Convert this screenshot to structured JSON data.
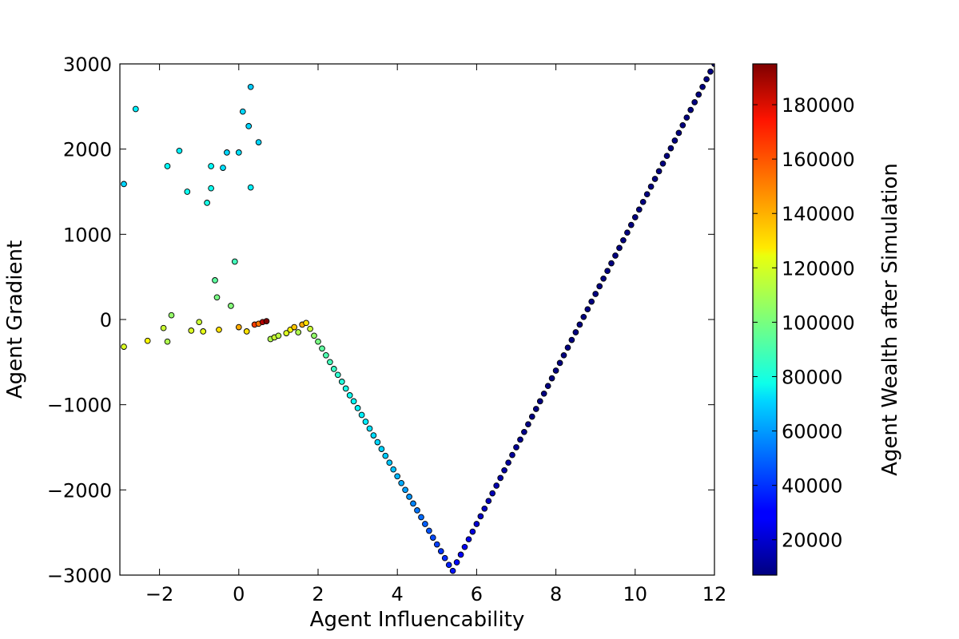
{
  "chart_data": {
    "type": "scatter",
    "title": "",
    "xlabel": "Agent Influencability",
    "ylabel": "Agent Gradient",
    "colorbar_label": "Agent Wealth after Simulation",
    "xlim": [
      -3,
      12
    ],
    "ylim": [
      -3000,
      3000
    ],
    "color_range": [
      7000,
      195000
    ],
    "colormap": "jet",
    "marker_edge_color": "#000000",
    "grid": false,
    "x_ticks": [
      {
        "value": -2,
        "label": "−2"
      },
      {
        "value": 0,
        "label": "0"
      },
      {
        "value": 2,
        "label": "2"
      },
      {
        "value": 4,
        "label": "4"
      },
      {
        "value": 6,
        "label": "6"
      },
      {
        "value": 8,
        "label": "8"
      },
      {
        "value": 10,
        "label": "10"
      },
      {
        "value": 12,
        "label": "12"
      }
    ],
    "y_ticks": [
      {
        "value": -3000,
        "label": "−3000"
      },
      {
        "value": -2000,
        "label": "−2000"
      },
      {
        "value": -1000,
        "label": "−1000"
      },
      {
        "value": 0,
        "label": "0"
      },
      {
        "value": 1000,
        "label": "1000"
      },
      {
        "value": 2000,
        "label": "2000"
      },
      {
        "value": 3000,
        "label": "3000"
      }
    ],
    "colorbar_ticks": [
      {
        "value": 20000,
        "label": "20000"
      },
      {
        "value": 40000,
        "label": "40000"
      },
      {
        "value": 60000,
        "label": "60000"
      },
      {
        "value": 80000,
        "label": "80000"
      },
      {
        "value": 100000,
        "label": "100000"
      },
      {
        "value": 120000,
        "label": "120000"
      },
      {
        "value": 140000,
        "label": "140000"
      },
      {
        "value": 160000,
        "label": "160000"
      },
      {
        "value": 180000,
        "label": "180000"
      }
    ],
    "points": [
      [
        -2.9,
        -320,
        118000
      ],
      [
        -2.9,
        1590,
        70000
      ],
      [
        -2.6,
        2470,
        75000
      ],
      [
        -2.3,
        -250,
        125000
      ],
      [
        -1.9,
        -100,
        115000
      ],
      [
        -1.8,
        -260,
        110000
      ],
      [
        -1.8,
        1800,
        78000
      ],
      [
        -1.7,
        50,
        105000
      ],
      [
        -1.5,
        1980,
        75000
      ],
      [
        -1.3,
        1500,
        80000
      ],
      [
        -1.2,
        -130,
        118000
      ],
      [
        -1.0,
        -30,
        115000
      ],
      [
        -0.9,
        -140,
        120000
      ],
      [
        -0.8,
        1370,
        82000
      ],
      [
        -0.7,
        1540,
        80000
      ],
      [
        -0.7,
        1800,
        78000
      ],
      [
        -0.6,
        460,
        95000
      ],
      [
        -0.55,
        260,
        100000
      ],
      [
        -0.5,
        -120,
        130000
      ],
      [
        -0.4,
        1780,
        72000
      ],
      [
        -0.3,
        1960,
        70000
      ],
      [
        -0.2,
        160,
        102000
      ],
      [
        -0.1,
        680,
        90000
      ],
      [
        0.0,
        -90,
        140000
      ],
      [
        0.0,
        1960,
        72000
      ],
      [
        0.1,
        2440,
        70000
      ],
      [
        0.2,
        -140,
        130000
      ],
      [
        0.25,
        2270,
        70000
      ],
      [
        0.3,
        1550,
        75000
      ],
      [
        0.4,
        -60,
        160000
      ],
      [
        0.5,
        -50,
        150000
      ],
      [
        0.6,
        -30,
        185000
      ],
      [
        0.7,
        -20,
        195000
      ],
      [
        0.5,
        2080,
        70000
      ],
      [
        0.3,
        2730,
        68000
      ],
      [
        0.8,
        -230,
        110000
      ],
      [
        0.9,
        -210,
        115000
      ],
      [
        1.0,
        -190,
        112000
      ],
      [
        1.2,
        -160,
        118000
      ],
      [
        1.3,
        -120,
        125000
      ],
      [
        1.4,
        -90,
        135000
      ],
      [
        1.5,
        -150,
        110000
      ],
      [
        1.6,
        -60,
        140000
      ],
      [
        1.7,
        -40,
        130000
      ],
      [
        1.8,
        -110,
        115000
      ],
      [
        1.9,
        -190,
        105000
      ],
      [
        2.0,
        -260,
        100000
      ],
      [
        2.1,
        -340,
        95000
      ],
      [
        2.2,
        -420,
        92000
      ],
      [
        2.3,
        -500,
        90000
      ],
      [
        2.4,
        -580,
        88000
      ],
      [
        2.5,
        -650,
        86000
      ],
      [
        2.6,
        -730,
        84000
      ],
      [
        2.7,
        -810,
        82000
      ],
      [
        2.8,
        -890,
        80000
      ],
      [
        2.9,
        -960,
        78000
      ],
      [
        3.0,
        -1040,
        76000
      ],
      [
        3.1,
        -1120,
        75000
      ],
      [
        3.2,
        -1200,
        74000
      ],
      [
        3.3,
        -1280,
        72000
      ],
      [
        3.4,
        -1360,
        71000
      ],
      [
        3.5,
        -1440,
        70000
      ],
      [
        3.6,
        -1520,
        69000
      ],
      [
        3.7,
        -1600,
        68000
      ],
      [
        3.8,
        -1680,
        67000
      ],
      [
        3.9,
        -1760,
        66000
      ],
      [
        4.0,
        -1840,
        64000
      ],
      [
        4.1,
        -1920,
        62000
      ],
      [
        4.2,
        -2000,
        60000
      ],
      [
        4.3,
        -2080,
        58000
      ],
      [
        4.4,
        -2160,
        55000
      ],
      [
        4.5,
        -2240,
        52000
      ],
      [
        4.6,
        -2320,
        50000
      ],
      [
        4.7,
        -2400,
        48000
      ],
      [
        4.8,
        -2480,
        46000
      ],
      [
        4.9,
        -2560,
        44000
      ],
      [
        5.0,
        -2640,
        42000
      ],
      [
        5.1,
        -2720,
        40000
      ],
      [
        5.2,
        -2800,
        38000
      ],
      [
        5.3,
        -2880,
        36000
      ],
      [
        5.4,
        -2950,
        34000
      ],
      [
        5.5,
        -2850,
        32000
      ],
      [
        5.6,
        -2760,
        30000
      ],
      [
        5.7,
        -2670,
        28000
      ],
      [
        5.8,
        -2580,
        26000
      ],
      [
        5.9,
        -2490,
        24000
      ],
      [
        6.0,
        -2400,
        22000
      ],
      [
        6.1,
        -2310,
        20000
      ],
      [
        6.2,
        -2220,
        19000
      ],
      [
        6.3,
        -2130,
        18000
      ],
      [
        6.4,
        -2040,
        17000
      ],
      [
        6.5,
        -1950,
        16000
      ],
      [
        6.6,
        -1860,
        15000
      ],
      [
        6.7,
        -1770,
        14000
      ],
      [
        6.8,
        -1680,
        13000
      ],
      [
        6.9,
        -1590,
        12000
      ],
      [
        7.0,
        -1500,
        11000
      ],
      [
        7.1,
        -1410,
        10000
      ],
      [
        7.2,
        -1320,
        9000
      ],
      [
        7.3,
        -1230,
        8000
      ],
      [
        7.4,
        -1140,
        7500
      ],
      [
        7.5,
        -1050,
        7000
      ],
      [
        7.6,
        -960,
        7000
      ],
      [
        7.7,
        -870,
        7000
      ],
      [
        7.8,
        -780,
        7000
      ],
      [
        7.9,
        -690,
        7000
      ],
      [
        8.0,
        -600,
        7000
      ],
      [
        8.1,
        -510,
        7000
      ],
      [
        8.2,
        -420,
        7000
      ],
      [
        8.3,
        -330,
        7000
      ],
      [
        8.4,
        -240,
        7000
      ],
      [
        8.5,
        -150,
        7000
      ],
      [
        8.6,
        -60,
        7000
      ],
      [
        8.7,
        30,
        7000
      ],
      [
        8.8,
        120,
        7000
      ],
      [
        8.9,
        210,
        7000
      ],
      [
        9.0,
        300,
        7000
      ],
      [
        9.1,
        390,
        7000
      ],
      [
        9.2,
        480,
        7000
      ],
      [
        9.3,
        570,
        7000
      ],
      [
        9.4,
        660,
        7000
      ],
      [
        9.5,
        750,
        7000
      ],
      [
        9.6,
        840,
        7000
      ],
      [
        9.7,
        930,
        7000
      ],
      [
        9.8,
        1020,
        7000
      ],
      [
        9.9,
        1110,
        7000
      ],
      [
        10.0,
        1200,
        7000
      ],
      [
        10.1,
        1290,
        7000
      ],
      [
        10.2,
        1380,
        7000
      ],
      [
        10.3,
        1470,
        7000
      ],
      [
        10.4,
        1560,
        7000
      ],
      [
        10.5,
        1650,
        7000
      ],
      [
        10.6,
        1740,
        7000
      ],
      [
        10.7,
        1830,
        7000
      ],
      [
        10.8,
        1920,
        7000
      ],
      [
        10.9,
        2010,
        7000
      ],
      [
        11.0,
        2100,
        7000
      ],
      [
        11.1,
        2190,
        7000
      ],
      [
        11.2,
        2280,
        7000
      ],
      [
        11.3,
        2370,
        7000
      ],
      [
        11.4,
        2460,
        7000
      ],
      [
        11.5,
        2550,
        7000
      ],
      [
        11.6,
        2640,
        7000
      ],
      [
        11.7,
        2730,
        7000
      ],
      [
        11.8,
        2820,
        7000
      ],
      [
        11.9,
        2910,
        7000
      ],
      [
        12.0,
        3000,
        7000
      ]
    ]
  }
}
